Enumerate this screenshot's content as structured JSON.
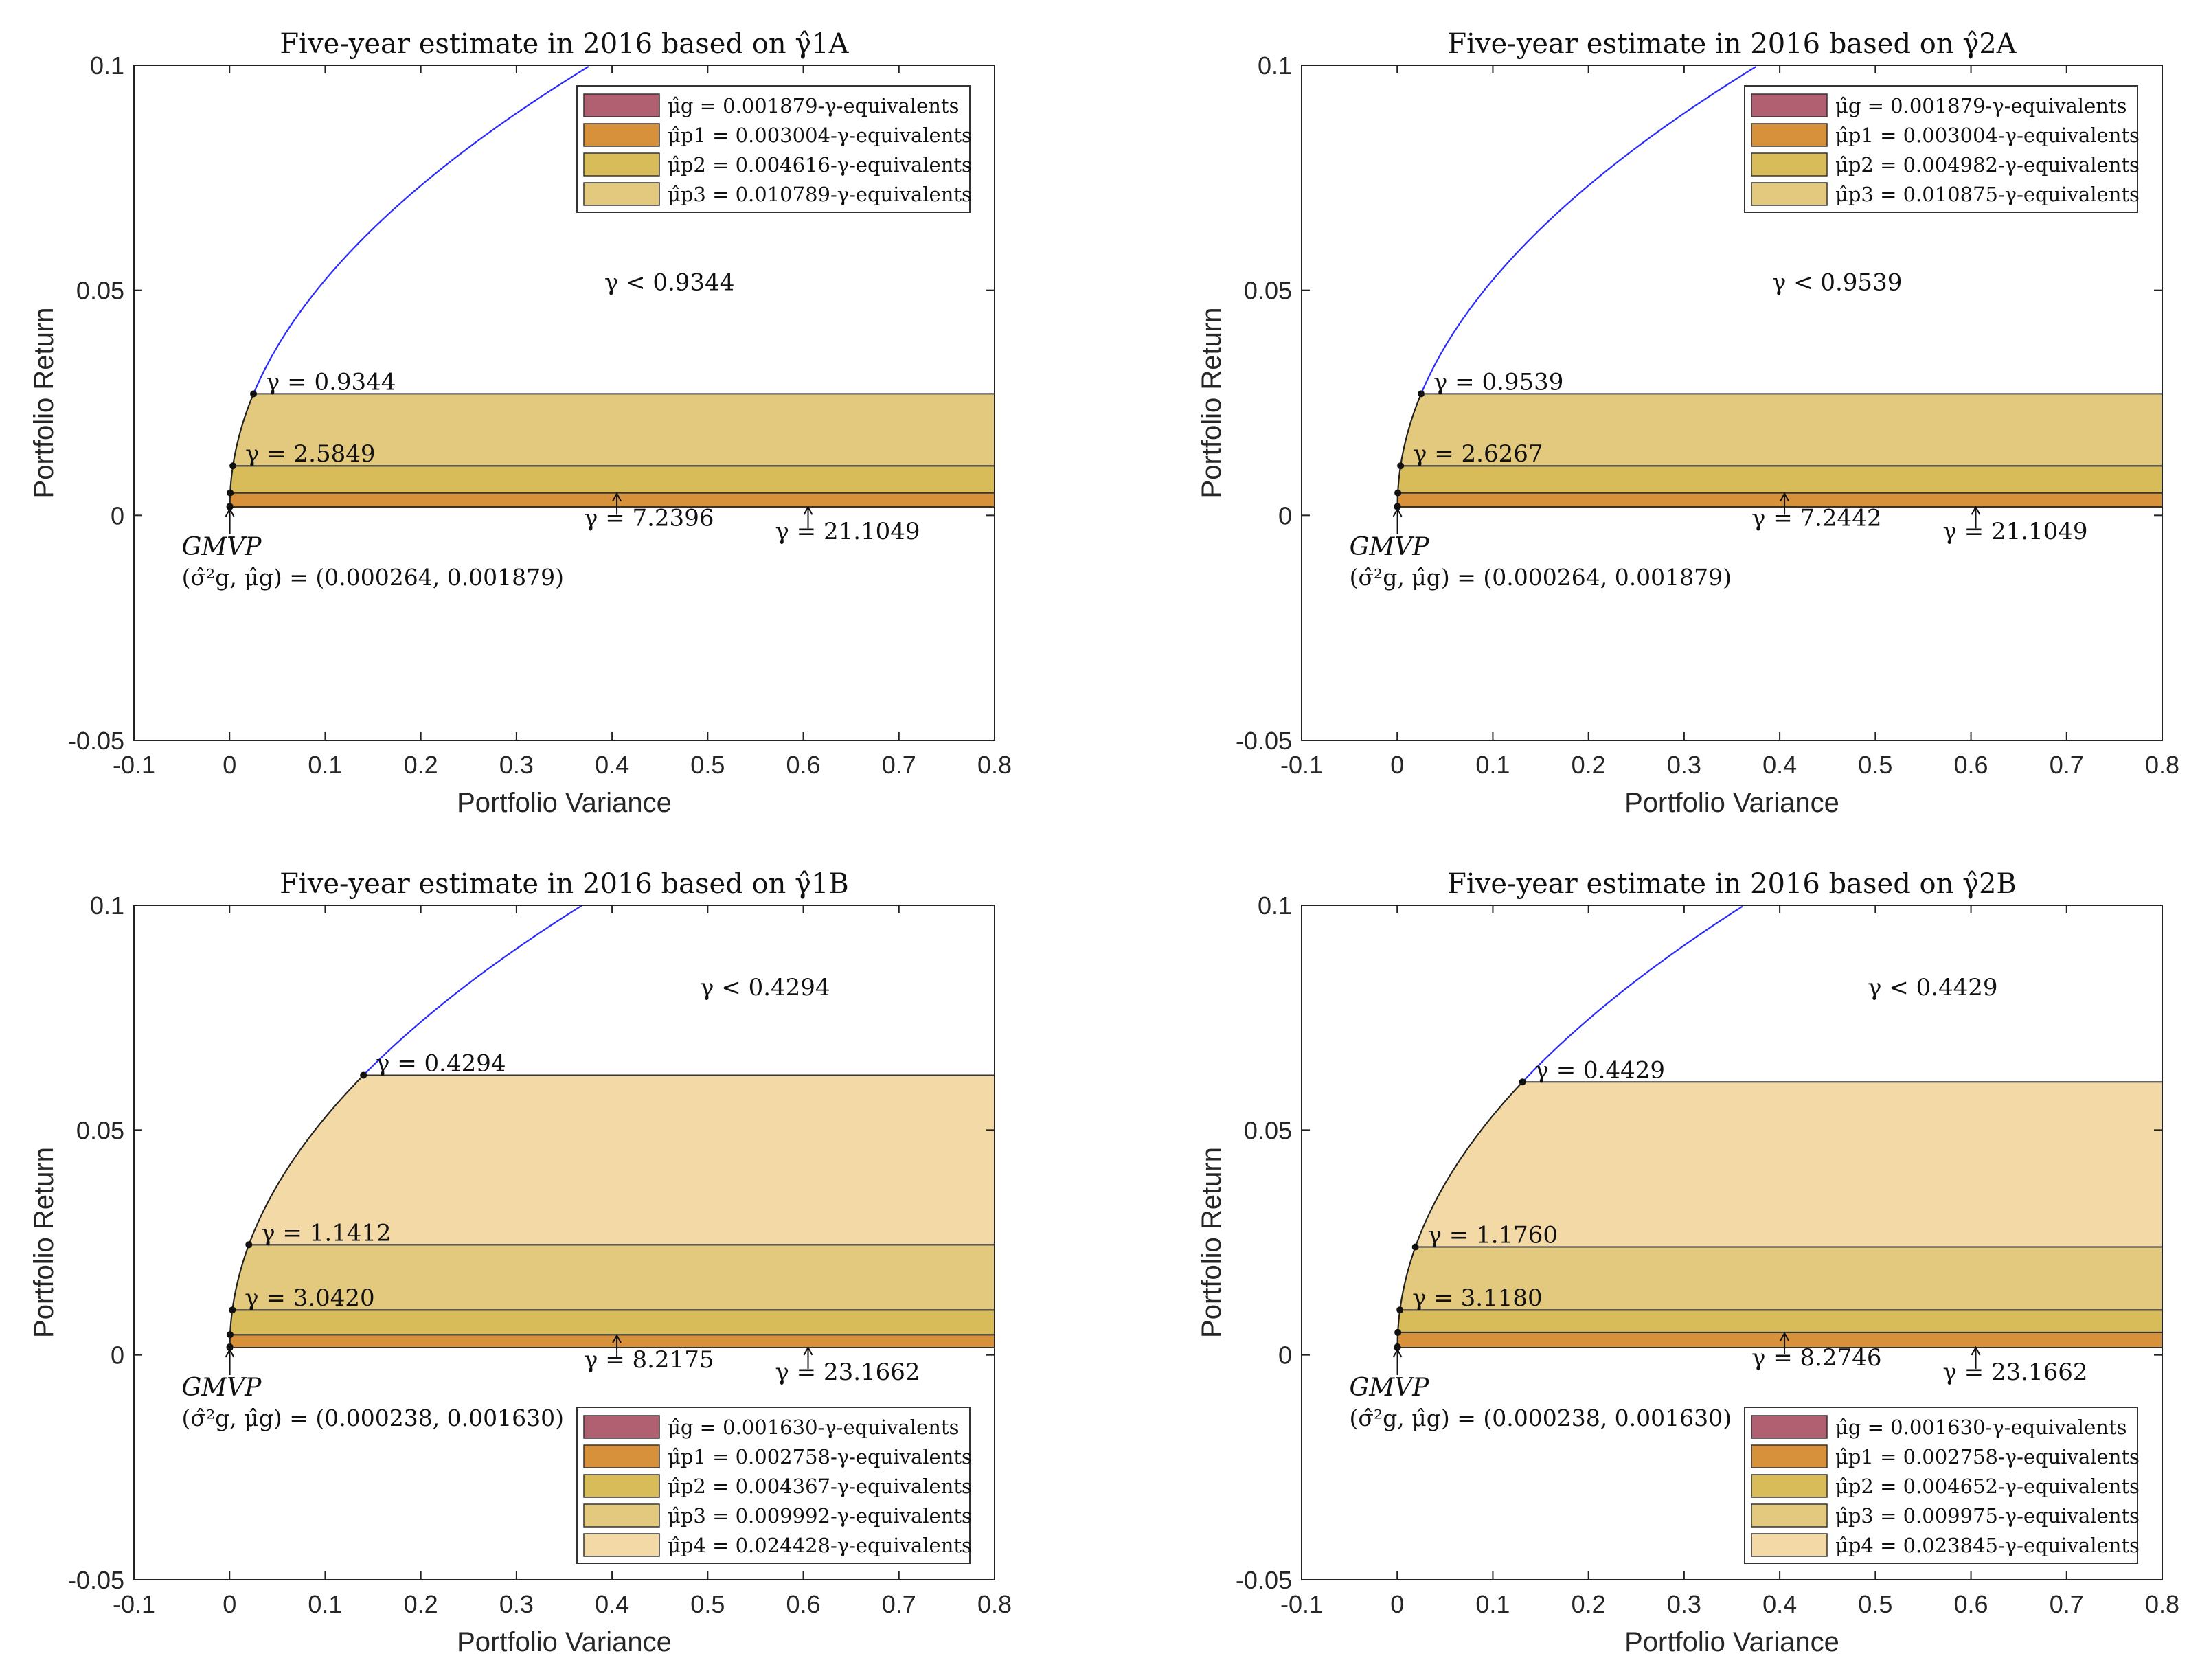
{
  "chart_data": [
    {
      "type": "area",
      "title": "Five-year estimate in 2016 based on γ̂1A",
      "xlabel": "Portfolio Variance",
      "ylabel": "Portfolio Return",
      "xlim": [
        -0.1,
        0.8
      ],
      "ylim": [
        -0.05,
        0.1
      ],
      "xticks": [
        -0.1,
        0,
        0.1,
        0.2,
        0.3,
        0.4,
        0.5,
        0.6,
        0.7,
        0.8
      ],
      "xtick_labels": [
        "-0.1",
        "0",
        "0.1",
        "0.2",
        "0.3",
        "0.4",
        "0.5",
        "0.6",
        "0.7",
        "0.8"
      ],
      "yticks": [
        -0.05,
        0,
        0.05,
        0.1
      ],
      "ytick_labels": [
        "-0.05",
        "0",
        "0.05",
        "0.1"
      ],
      "gmvp": {
        "variance": 0.000264,
        "return": 0.001879,
        "label": "GMVP",
        "coords_text": "(σ̂²g, μ̂g) = (0.000264, 0.001879)"
      },
      "frontier_points": [
        {
          "return": 0.027,
          "gamma_text": "γ = 0.9344",
          "label_side": "right"
        },
        {
          "return": 0.011,
          "gamma_text": "γ = 2.5849",
          "label_side": "right"
        },
        {
          "return": 0.005,
          "gamma_text": "γ = 7.2396",
          "label_side": "arrow",
          "arrow_x": 0.405
        },
        {
          "return": 0.002,
          "gamma_text": "γ = 21.1049",
          "label_side": "arrow",
          "arrow_x": 0.605
        }
      ],
      "bands": [
        {
          "from": 0.001879,
          "to": 0.005,
          "color": "#d7913a"
        },
        {
          "from": 0.005,
          "to": 0.011,
          "color": "#d9bc5a"
        },
        {
          "from": 0.011,
          "to": 0.027,
          "color": "#e3c97d"
        }
      ],
      "region_label": {
        "text": "γ < 0.9344",
        "x": 0.46,
        "y": 0.05
      },
      "legend_position": "top-right",
      "legend": [
        {
          "color": "#b06070",
          "text": "μ̂g = 0.001879-γ-equivalents"
        },
        {
          "color": "#d7913a",
          "text": "μ̂p1 = 0.003004-γ-equivalents"
        },
        {
          "color": "#d9bc5a",
          "text": "μ̂p2 = 0.004616-γ-equivalents"
        },
        {
          "color": "#e3c97d",
          "text": "μ̂p3 = 0.010789-γ-equivalents"
        }
      ]
    },
    {
      "type": "area",
      "title": "Five-year estimate in 2016 based on γ̂2A",
      "xlabel": "Portfolio Variance",
      "ylabel": "Portfolio Return",
      "xlim": [
        -0.1,
        0.8
      ],
      "ylim": [
        -0.05,
        0.1
      ],
      "xticks": [
        -0.1,
        0,
        0.1,
        0.2,
        0.3,
        0.4,
        0.5,
        0.6,
        0.7,
        0.8
      ],
      "xtick_labels": [
        "-0.1",
        "0",
        "0.1",
        "0.2",
        "0.3",
        "0.4",
        "0.5",
        "0.6",
        "0.7",
        "0.8"
      ],
      "yticks": [
        -0.05,
        0,
        0.05,
        0.1
      ],
      "ytick_labels": [
        "-0.05",
        "0",
        "0.05",
        "0.1"
      ],
      "gmvp": {
        "variance": 0.000264,
        "return": 0.001879,
        "label": "GMVP",
        "coords_text": "(σ̂²g, μ̂g) = (0.000264, 0.001879)"
      },
      "frontier_points": [
        {
          "return": 0.027,
          "gamma_text": "γ = 0.9539",
          "label_side": "right"
        },
        {
          "return": 0.011,
          "gamma_text": "γ = 2.6267",
          "label_side": "right"
        },
        {
          "return": 0.005,
          "gamma_text": "γ = 7.2442",
          "label_side": "arrow",
          "arrow_x": 0.405
        },
        {
          "return": 0.002,
          "gamma_text": "γ = 21.1049",
          "label_side": "arrow",
          "arrow_x": 0.605
        }
      ],
      "bands": [
        {
          "from": 0.001879,
          "to": 0.005,
          "color": "#d7913a"
        },
        {
          "from": 0.005,
          "to": 0.011,
          "color": "#d9bc5a"
        },
        {
          "from": 0.011,
          "to": 0.027,
          "color": "#e3c97d"
        }
      ],
      "region_label": {
        "text": "γ < 0.9539",
        "x": 0.46,
        "y": 0.05
      },
      "legend_position": "top-right",
      "legend": [
        {
          "color": "#b06070",
          "text": "μ̂g = 0.001879-γ-equivalents"
        },
        {
          "color": "#d7913a",
          "text": "μ̂p1 = 0.003004-γ-equivalents"
        },
        {
          "color": "#d9bc5a",
          "text": "μ̂p2 = 0.004982-γ-equivalents"
        },
        {
          "color": "#e3c97d",
          "text": "μ̂p3 = 0.010875-γ-equivalents"
        }
      ]
    },
    {
      "type": "area",
      "title": "Five-year estimate in 2016 based on γ̂1B",
      "xlabel": "Portfolio Variance",
      "ylabel": "Portfolio Return",
      "xlim": [
        -0.1,
        0.8
      ],
      "ylim": [
        -0.05,
        0.1
      ],
      "xticks": [
        -0.1,
        0,
        0.1,
        0.2,
        0.3,
        0.4,
        0.5,
        0.6,
        0.7,
        0.8
      ],
      "xtick_labels": [
        "-0.1",
        "0",
        "0.1",
        "0.2",
        "0.3",
        "0.4",
        "0.5",
        "0.6",
        "0.7",
        "0.8"
      ],
      "yticks": [
        -0.05,
        0,
        0.05,
        0.1
      ],
      "ytick_labels": [
        "-0.05",
        "0",
        "0.05",
        "0.1"
      ],
      "gmvp": {
        "variance": 0.000238,
        "return": 0.00163,
        "label": "GMVP",
        "coords_text": "(σ̂²g, μ̂g) = (0.000238, 0.001630)"
      },
      "frontier_points": [
        {
          "return": 0.0622,
          "gamma_text": "γ = 0.4294",
          "label_side": "right"
        },
        {
          "return": 0.0245,
          "gamma_text": "γ = 1.1412",
          "label_side": "right"
        },
        {
          "return": 0.01,
          "gamma_text": "γ = 3.0420",
          "label_side": "right"
        },
        {
          "return": 0.0045,
          "gamma_text": "γ = 8.2175",
          "label_side": "arrow",
          "arrow_x": 0.405
        },
        {
          "return": 0.0018,
          "gamma_text": "γ = 23.1662",
          "label_side": "arrow",
          "arrow_x": 0.605
        }
      ],
      "bands": [
        {
          "from": 0.00163,
          "to": 0.0045,
          "color": "#d7913a"
        },
        {
          "from": 0.0045,
          "to": 0.01,
          "color": "#d9bc5a"
        },
        {
          "from": 0.01,
          "to": 0.0245,
          "color": "#e3c97d"
        },
        {
          "from": 0.0245,
          "to": 0.0622,
          "color": "#f2d9a6"
        }
      ],
      "region_label": {
        "text": "γ < 0.4294",
        "x": 0.56,
        "y": 0.08
      },
      "legend_position": "bottom-right",
      "legend": [
        {
          "color": "#b06070",
          "text": "μ̂g = 0.001630-γ-equivalents"
        },
        {
          "color": "#d7913a",
          "text": "μ̂p1 = 0.002758-γ-equivalents"
        },
        {
          "color": "#d9bc5a",
          "text": "μ̂p2 = 0.004367-γ-equivalents"
        },
        {
          "color": "#e3c97d",
          "text": "μ̂p3 = 0.009992-γ-equivalents"
        },
        {
          "color": "#f2d9a6",
          "text": "μ̂p4 = 0.024428-γ-equivalents"
        }
      ]
    },
    {
      "type": "area",
      "title": "Five-year estimate in 2016 based on γ̂2B",
      "xlabel": "Portfolio Variance",
      "ylabel": "Portfolio Return",
      "xlim": [
        -0.1,
        0.8
      ],
      "ylim": [
        -0.05,
        0.1
      ],
      "xticks": [
        -0.1,
        0,
        0.1,
        0.2,
        0.3,
        0.4,
        0.5,
        0.6,
        0.7,
        0.8
      ],
      "xtick_labels": [
        "-0.1",
        "0",
        "0.1",
        "0.2",
        "0.3",
        "0.4",
        "0.5",
        "0.6",
        "0.7",
        "0.8"
      ],
      "yticks": [
        -0.05,
        0,
        0.05,
        0.1
      ],
      "ytick_labels": [
        "-0.05",
        "0",
        "0.05",
        "0.1"
      ],
      "gmvp": {
        "variance": 0.000238,
        "return": 0.00163,
        "label": "GMVP",
        "coords_text": "(σ̂²g, μ̂g) = (0.000238, 0.001630)"
      },
      "frontier_points": [
        {
          "return": 0.0607,
          "gamma_text": "γ = 0.4429",
          "label_side": "right"
        },
        {
          "return": 0.024,
          "gamma_text": "γ = 1.1760",
          "label_side": "right"
        },
        {
          "return": 0.01,
          "gamma_text": "γ = 3.1180",
          "label_side": "right"
        },
        {
          "return": 0.005,
          "gamma_text": "γ = 8.2746",
          "label_side": "arrow",
          "arrow_x": 0.405
        },
        {
          "return": 0.0018,
          "gamma_text": "γ = 23.1662",
          "label_side": "arrow",
          "arrow_x": 0.605
        }
      ],
      "bands": [
        {
          "from": 0.00163,
          "to": 0.005,
          "color": "#d7913a"
        },
        {
          "from": 0.005,
          "to": 0.01,
          "color": "#d9bc5a"
        },
        {
          "from": 0.01,
          "to": 0.024,
          "color": "#e3c97d"
        },
        {
          "from": 0.024,
          "to": 0.0607,
          "color": "#f2d9a6"
        }
      ],
      "region_label": {
        "text": "γ < 0.4429",
        "x": 0.56,
        "y": 0.08
      },
      "legend_position": "bottom-right",
      "legend": [
        {
          "color": "#b06070",
          "text": "μ̂g = 0.001630-γ-equivalents"
        },
        {
          "color": "#d7913a",
          "text": "μ̂p1 = 0.002758-γ-equivalents"
        },
        {
          "color": "#d9bc5a",
          "text": "μ̂p2 = 0.004652-γ-equivalents"
        },
        {
          "color": "#e3c97d",
          "text": "μ̂p3 = 0.009975-γ-equivalents"
        },
        {
          "color": "#f2d9a6",
          "text": "μ̂p4 = 0.023845-γ-equivalents"
        }
      ]
    }
  ],
  "colors": {
    "frontier": "#2a2aff",
    "axis": "#222222",
    "band_edge": "#333333"
  }
}
